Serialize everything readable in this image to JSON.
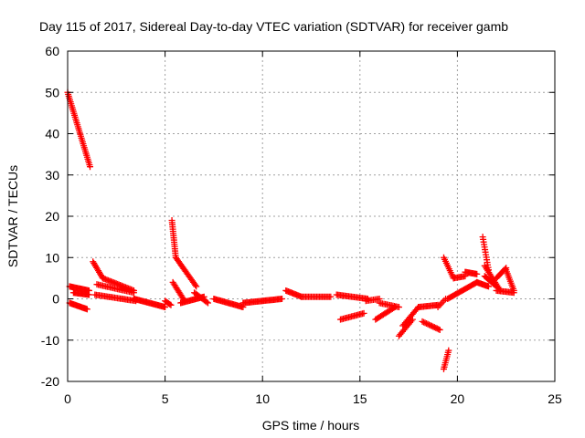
{
  "chart_data": {
    "type": "scatter",
    "title": "Day 115 of 2017, Sidereal Day-to-day VTEC variation (SDTVAR) for receiver gamb",
    "xlabel": "GPS time / hours",
    "ylabel": "SDTVAR / TECUs",
    "xlim": [
      0,
      25
    ],
    "ylim": [
      -20,
      60
    ],
    "xticks": [
      "0",
      "5",
      "10",
      "15",
      "20",
      "25"
    ],
    "yticks": [
      "-20",
      "-10",
      "0",
      "10",
      "20",
      "30",
      "40",
      "50",
      "60"
    ],
    "grid": true,
    "marker": "plus",
    "color": "#ff0000",
    "segments": [
      {
        "x0": 0.0,
        "y0": 50.0,
        "x1": 1.15,
        "y1": 32.0,
        "n": 40
      },
      {
        "x0": 0.1,
        "y0": 3.0,
        "x1": 1.1,
        "y1": 2.0,
        "n": 20
      },
      {
        "x0": 0.3,
        "y0": 1.5,
        "x1": 1.1,
        "y1": 1.0,
        "n": 16
      },
      {
        "x0": 0.1,
        "y0": -1.0,
        "x1": 1.0,
        "y1": -2.5,
        "n": 18
      },
      {
        "x0": 1.3,
        "y0": 9.0,
        "x1": 1.8,
        "y1": 5.0,
        "n": 12
      },
      {
        "x0": 1.8,
        "y0": 5.0,
        "x1": 3.4,
        "y1": 2.0,
        "n": 24
      },
      {
        "x0": 1.4,
        "y0": 1.0,
        "x1": 3.5,
        "y1": -0.5,
        "n": 30
      },
      {
        "x0": 1.5,
        "y0": 3.5,
        "x1": 3.4,
        "y1": 1.5,
        "n": 26
      },
      {
        "x0": 3.4,
        "y0": 0.0,
        "x1": 5.0,
        "y1": -2.0,
        "n": 30
      },
      {
        "x0": 5.0,
        "y0": -0.5,
        "x1": 5.3,
        "y1": -1.5,
        "n": 6
      },
      {
        "x0": 5.35,
        "y0": 19.0,
        "x1": 5.55,
        "y1": 10.0,
        "n": 18
      },
      {
        "x0": 5.55,
        "y0": 10.0,
        "x1": 6.6,
        "y1": 3.0,
        "n": 22
      },
      {
        "x0": 5.4,
        "y0": 4.0,
        "x1": 6.0,
        "y1": -0.5,
        "n": 14
      },
      {
        "x0": 5.8,
        "y0": -1.0,
        "x1": 7.0,
        "y1": 0.5,
        "n": 22
      },
      {
        "x0": 6.5,
        "y0": 1.5,
        "x1": 7.2,
        "y1": -1.0,
        "n": 12
      },
      {
        "x0": 7.5,
        "y0": 0.0,
        "x1": 9.0,
        "y1": -2.0,
        "n": 26
      },
      {
        "x0": 9.0,
        "y0": -1.0,
        "x1": 11.0,
        "y1": 0.0,
        "n": 34
      },
      {
        "x0": 11.2,
        "y0": 2.0,
        "x1": 12.0,
        "y1": 0.5,
        "n": 14
      },
      {
        "x0": 12.0,
        "y0": 0.5,
        "x1": 13.5,
        "y1": 0.5,
        "n": 22
      },
      {
        "x0": 13.8,
        "y0": 1.0,
        "x1": 15.4,
        "y1": 0.0,
        "n": 24
      },
      {
        "x0": 15.3,
        "y0": -0.5,
        "x1": 16.0,
        "y1": 0.0,
        "n": 10
      },
      {
        "x0": 14.0,
        "y0": -5.0,
        "x1": 15.2,
        "y1": -3.5,
        "n": 18
      },
      {
        "x0": 15.8,
        "y0": -5.0,
        "x1": 16.8,
        "y1": -2.0,
        "n": 16
      },
      {
        "x0": 16.0,
        "y0": -1.0,
        "x1": 17.0,
        "y1": -2.0,
        "n": 14
      },
      {
        "x0": 17.0,
        "y0": -9.0,
        "x1": 17.7,
        "y1": -5.0,
        "n": 12
      },
      {
        "x0": 17.2,
        "y0": -6.5,
        "x1": 18.0,
        "y1": -2.0,
        "n": 14
      },
      {
        "x0": 18.0,
        "y0": -2.0,
        "x1": 19.0,
        "y1": -1.5,
        "n": 16
      },
      {
        "x0": 18.2,
        "y0": -5.5,
        "x1": 19.1,
        "y1": -7.5,
        "n": 14
      },
      {
        "x0": 19.0,
        "y0": -2.0,
        "x1": 19.4,
        "y1": 0.0,
        "n": 6
      },
      {
        "x0": 19.3,
        "y0": -17.0,
        "x1": 19.55,
        "y1": -12.5,
        "n": 10
      },
      {
        "x0": 19.3,
        "y0": 10.0,
        "x1": 19.8,
        "y1": 5.0,
        "n": 12
      },
      {
        "x0": 19.8,
        "y0": 5.0,
        "x1": 20.4,
        "y1": 5.5,
        "n": 10
      },
      {
        "x0": 20.4,
        "y0": 6.5,
        "x1": 21.0,
        "y1": 6.0,
        "n": 12
      },
      {
        "x0": 19.5,
        "y0": 0.0,
        "x1": 21.0,
        "y1": 4.0,
        "n": 26
      },
      {
        "x0": 21.0,
        "y0": 4.0,
        "x1": 21.6,
        "y1": 3.0,
        "n": 12
      },
      {
        "x0": 21.3,
        "y0": 15.0,
        "x1": 21.6,
        "y1": 7.0,
        "n": 14
      },
      {
        "x0": 21.4,
        "y0": 8.0,
        "x1": 22.2,
        "y1": 2.0,
        "n": 16
      },
      {
        "x0": 21.4,
        "y0": 5.5,
        "x1": 22.0,
        "y1": 3.0,
        "n": 12
      },
      {
        "x0": 22.0,
        "y0": 5.0,
        "x1": 22.5,
        "y1": 7.5,
        "n": 10
      },
      {
        "x0": 22.5,
        "y0": 7.0,
        "x1": 22.9,
        "y1": 2.0,
        "n": 12
      },
      {
        "x0": 22.0,
        "y0": 2.0,
        "x1": 22.9,
        "y1": 1.5,
        "n": 14
      }
    ]
  }
}
